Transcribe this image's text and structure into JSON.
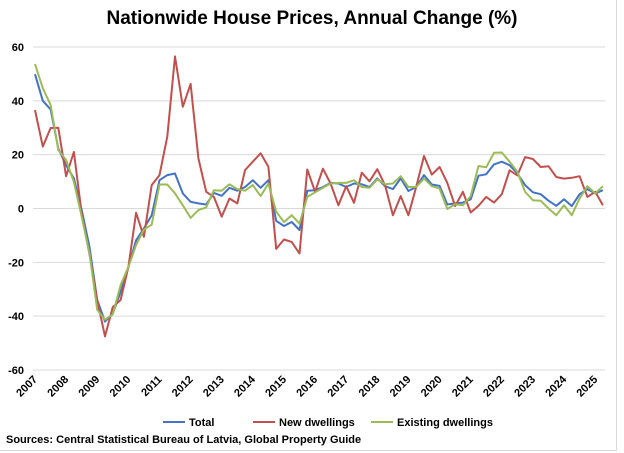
{
  "chart_data": {
    "type": "line",
    "title": "Nationwide House Prices, Annual Change (%)",
    "source": "Sources: Central Statistical Bureau of Latvia, Global Property Guide",
    "x_start": "2007Q1",
    "frequency": "quarterly",
    "x_tick_labels": [
      "2007",
      "2008",
      "2009",
      "2010",
      "2011",
      "2012",
      "2013",
      "2014",
      "2015",
      "2016",
      "2017",
      "2018",
      "2019",
      "2020",
      "2021",
      "2022",
      "2023",
      "2024",
      "2025"
    ],
    "ylim": [
      -60,
      60
    ],
    "y_ticks": [
      -60,
      -40,
      -20,
      0,
      20,
      40,
      60
    ],
    "grid": true,
    "legend": "bottom",
    "series": [
      {
        "name": "Total",
        "color": "#4472C4",
        "values": [
          49.9,
          40,
          36.8,
          22.3,
          16.1,
          11.2,
          -0.6,
          -14.3,
          -34,
          -42,
          -39,
          -31,
          -21.7,
          -11.8,
          -7.4,
          -2.5,
          10.5,
          12.4,
          13,
          5.6,
          2.5,
          1.9,
          1.5,
          5.8,
          4.7,
          7.7,
          6.6,
          8,
          10.5,
          7.7,
          10.5,
          -4.6,
          -6.5,
          -5,
          -8,
          6.6,
          6.8,
          8,
          9.5,
          9.3,
          8,
          9.3,
          9,
          8,
          11.2,
          8.3,
          7.2,
          11.2,
          6.5,
          8,
          12.4,
          8.9,
          8.4,
          1.5,
          1.9,
          2.2,
          3.4,
          12.2,
          12.7,
          16.4,
          17.4,
          16.1,
          13,
          8.7,
          6,
          5.3,
          2.9,
          1,
          3.4,
          0.9,
          5.3,
          7.2,
          5.6,
          6.8
        ]
      },
      {
        "name": "New dwellings",
        "color": "#C0504D",
        "values": [
          36.6,
          23,
          29.9,
          30,
          12,
          21,
          -2,
          -17,
          -34,
          -47.5,
          -36.6,
          -34,
          -21.7,
          -1.6,
          -10.5,
          8.7,
          12.4,
          26.7,
          56.5,
          37.8,
          46.3,
          18.6,
          6.2,
          4.3,
          -3,
          3.7,
          1.9,
          14.3,
          17.4,
          20.5,
          15.5,
          -15,
          -11.5,
          -12.4,
          -16.7,
          14.5,
          6.2,
          14.8,
          9.3,
          1.2,
          8.3,
          2.1,
          13.3,
          10.1,
          14.6,
          8.6,
          -2.5,
          4.6,
          -2.5,
          8,
          19.5,
          12.6,
          15.4,
          9.5,
          0.9,
          6.2,
          -1.5,
          1,
          4.3,
          2.2,
          5.3,
          14.2,
          12.3,
          19.1,
          18.4,
          15.4,
          15.7,
          11.7,
          11.1,
          11.4,
          12,
          4.3,
          6.2,
          1.2
        ]
      },
      {
        "name": "Existing dwellings",
        "color": "#9BBB59",
        "values": [
          53.7,
          44.7,
          38.5,
          21.7,
          18,
          9.9,
          -3.1,
          -16.7,
          -37.6,
          -41.3,
          -39.3,
          -28.5,
          -21.7,
          -13.6,
          -7.8,
          -6,
          8.9,
          8.9,
          5.6,
          1.2,
          -3.5,
          -0.6,
          0.4,
          6.8,
          6.6,
          9,
          7.2,
          6.6,
          8.7,
          4.6,
          9.3,
          -1.2,
          -5,
          -2.5,
          -5.6,
          4.3,
          6,
          7.7,
          9.3,
          9.5,
          9.5,
          10.5,
          8,
          7.7,
          10.8,
          9,
          9.3,
          12,
          8,
          8,
          11.2,
          8.3,
          7.4,
          -0.2,
          1.6,
          1.2,
          4.6,
          15.8,
          15.3,
          20.7,
          20.8,
          17.4,
          13.6,
          6.2,
          3.1,
          2.9,
          0,
          -2.5,
          1.2,
          -2.5,
          3.7,
          8.3,
          5.6,
          8.3
        ]
      }
    ]
  }
}
